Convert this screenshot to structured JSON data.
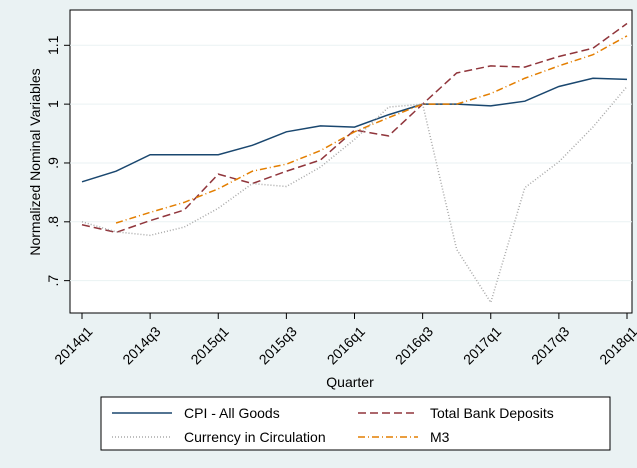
{
  "chart_data": {
    "type": "line",
    "x_label": "Quarter",
    "y_label": "Normalized Nominal Variables",
    "categories": [
      "2014q1",
      null,
      "2014q3",
      null,
      "2015q1",
      null,
      "2015q3",
      null,
      "2016q1",
      null,
      "2016q3",
      null,
      "2017q1",
      null,
      "2017q3",
      null,
      "2018q1"
    ],
    "ylim": [
      0.645,
      1.16
    ],
    "yticks": [
      {
        "value": 0.7,
        "label": ".7"
      },
      {
        "value": 0.8,
        "label": ".8"
      },
      {
        "value": 0.9,
        "label": ".9"
      },
      1,
      1.1
    ],
    "grid": true,
    "series": [
      {
        "name": "CPI - All Goods",
        "color": "#1a476f",
        "dash": "none",
        "values": [
          0.868,
          0.886,
          0.914,
          0.914,
          0.914,
          0.93,
          0.953,
          0.963,
          0.961,
          0.982,
          1.0,
          1.0,
          0.997,
          1.005,
          1.03,
          1.044,
          1.042
        ]
      },
      {
        "name": "Total Bank Deposits",
        "color": "#90353b",
        "dash": "8,4",
        "values": [
          0.795,
          0.782,
          0.802,
          0.82,
          0.881,
          0.865,
          0.886,
          0.905,
          0.956,
          0.946,
          1.0,
          1.053,
          1.065,
          1.063,
          1.081,
          1.095,
          1.137
        ]
      },
      {
        "name": "Currency in Circulation",
        "color": "#a8a8a8",
        "dash": "1,2",
        "values": [
          0.8,
          0.783,
          0.777,
          0.791,
          0.823,
          0.865,
          0.86,
          0.893,
          0.94,
          0.995,
          1.0,
          0.753,
          0.663,
          0.858,
          0.902,
          0.961,
          1.03
        ]
      },
      {
        "name": "M3",
        "color": "#e37e00",
        "dash": "7,3,1,3",
        "values": [
          null,
          0.798,
          0.816,
          0.833,
          0.856,
          0.886,
          0.898,
          0.921,
          0.953,
          0.977,
          1.0,
          1.0,
          1.018,
          1.044,
          1.065,
          1.084,
          1.116
        ]
      }
    ]
  }
}
